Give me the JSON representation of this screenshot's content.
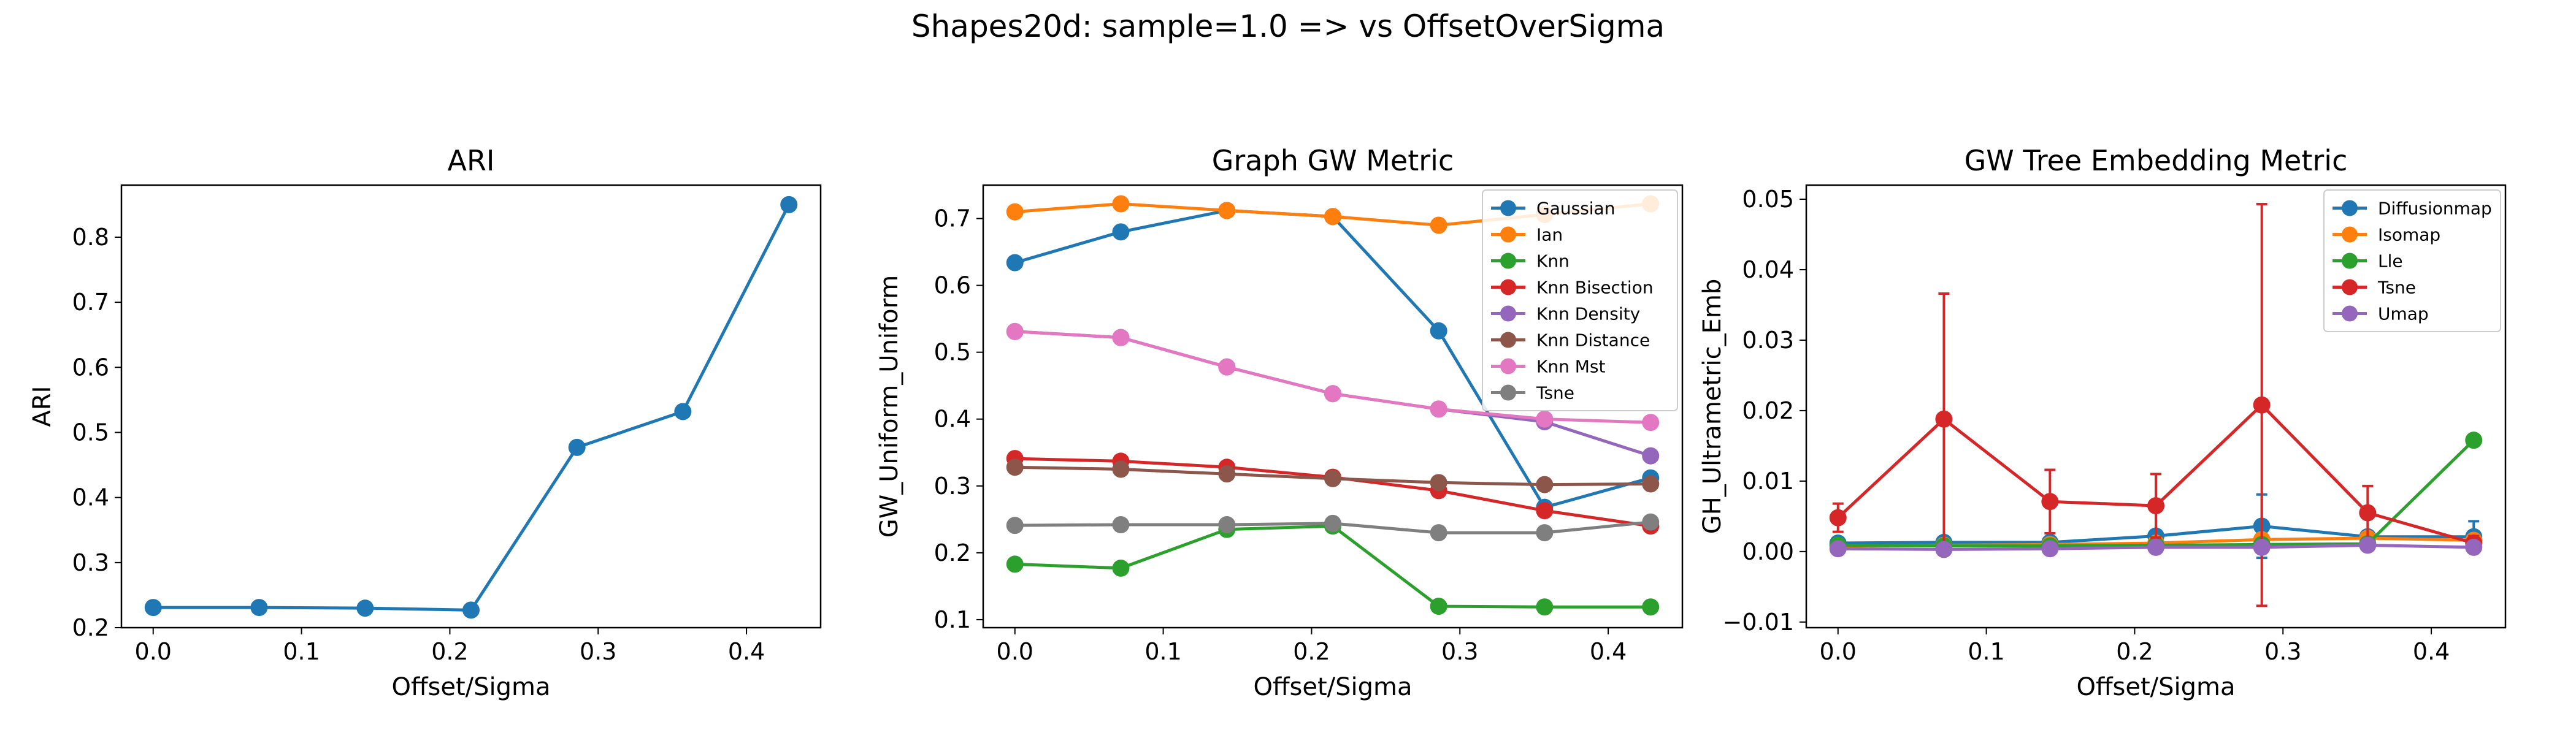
{
  "figure": {
    "suptitle": "Shapes20d: sample=1.0 => vs OffsetOverSigma"
  },
  "chart_data": [
    {
      "type": "line",
      "title": "ARI",
      "xlabel": "Offset/Sigma",
      "ylabel": "ARI",
      "xlim": [
        -0.0214,
        0.45
      ],
      "ylim": [
        0.2,
        0.88
      ],
      "xticks": [
        0.0,
        0.1,
        0.2,
        0.3,
        0.4
      ],
      "xticklabels": [
        "0.0",
        "0.1",
        "0.2",
        "0.3",
        "0.4"
      ],
      "yticks": [
        0.2,
        0.3,
        0.4,
        0.5,
        0.6,
        0.7,
        0.8
      ],
      "yticklabels": [
        "0.2",
        "0.3",
        "0.4",
        "0.5",
        "0.6",
        "0.7",
        "0.8"
      ],
      "grid": false,
      "legend": null,
      "x": [
        0.0,
        0.0714,
        0.1429,
        0.2143,
        0.2857,
        0.3571,
        0.4286
      ],
      "series": [
        {
          "color": "#1f77b4",
          "values": [
            0.231,
            0.231,
            0.23,
            0.227,
            0.477,
            0.532,
            0.85
          ]
        }
      ]
    },
    {
      "type": "line",
      "title": "Graph GW Metric",
      "xlabel": "Offset/Sigma",
      "ylabel": "GW_Uniform_Uniform",
      "xlim": [
        -0.0214,
        0.45
      ],
      "ylim": [
        0.088,
        0.75
      ],
      "xticks": [
        0.0,
        0.1,
        0.2,
        0.3,
        0.4
      ],
      "xticklabels": [
        "0.0",
        "0.1",
        "0.2",
        "0.3",
        "0.4"
      ],
      "yticks": [
        0.1,
        0.2,
        0.3,
        0.4,
        0.5,
        0.6,
        0.7
      ],
      "yticklabels": [
        "0.1",
        "0.2",
        "0.3",
        "0.4",
        "0.5",
        "0.6",
        "0.7"
      ],
      "grid": false,
      "legend": "upper right",
      "x": [
        0.0,
        0.0714,
        0.1429,
        0.2143,
        0.2857,
        0.3571,
        0.4286
      ],
      "series": [
        {
          "name": "Gaussian",
          "color": "#1f77b4",
          "values": [
            0.634,
            0.68,
            0.712,
            0.703,
            0.532,
            0.268,
            0.312
          ]
        },
        {
          "name": "Ian",
          "color": "#ff7f0e",
          "values": [
            0.71,
            0.722,
            0.712,
            0.703,
            0.69,
            0.706,
            0.722
          ]
        },
        {
          "name": "Knn",
          "color": "#2ca02c",
          "values": [
            0.183,
            0.177,
            0.235,
            0.24,
            0.12,
            0.119,
            0.119
          ]
        },
        {
          "name": "Knn Bisection",
          "color": "#d62728",
          "values": [
            0.341,
            0.337,
            0.328,
            0.313,
            0.293,
            0.263,
            0.24
          ]
        },
        {
          "name": "Knn Density",
          "color": "#9467bd",
          "values": [
            0.531,
            0.522,
            0.478,
            0.438,
            0.415,
            0.396,
            0.345
          ]
        },
        {
          "name": "Knn Distance",
          "color": "#8c564b",
          "values": [
            0.328,
            0.325,
            0.318,
            0.311,
            0.305,
            0.302,
            0.303
          ]
        },
        {
          "name": "Knn Mst",
          "color": "#e377c2",
          "values": [
            0.531,
            0.522,
            0.478,
            0.438,
            0.415,
            0.4,
            0.395
          ]
        },
        {
          "name": "Tsne",
          "color": "#7f7f7f",
          "values": [
            0.241,
            0.242,
            0.242,
            0.244,
            0.23,
            0.23,
            0.246
          ]
        }
      ]
    },
    {
      "type": "line",
      "title": "GW Tree Embedding Metric",
      "xlabel": "Offset/Sigma",
      "ylabel": "GH_Ultrametric_Emb",
      "xlim": [
        -0.0214,
        0.45
      ],
      "ylim": [
        -0.0108,
        0.052
      ],
      "xticks": [
        0.0,
        0.1,
        0.2,
        0.3,
        0.4
      ],
      "xticklabels": [
        "0.0",
        "0.1",
        "0.2",
        "0.3",
        "0.4"
      ],
      "yticks": [
        -0.01,
        0.0,
        0.01,
        0.02,
        0.03,
        0.04,
        0.05
      ],
      "yticklabels": [
        "−0.01",
        "0.00",
        "0.01",
        "0.02",
        "0.03",
        "0.04",
        "0.05"
      ],
      "grid": false,
      "legend": "upper right",
      "x": [
        0.0,
        0.0714,
        0.1429,
        0.2143,
        0.2857,
        0.3571,
        0.4286
      ],
      "series": [
        {
          "name": "Diffusionmap",
          "color": "#1f77b4",
          "values": [
            0.0012,
            0.0013,
            0.0013,
            0.0022,
            0.0036,
            0.0021,
            0.0021
          ],
          "errors": [
            0.0003,
            0.0004,
            0.0005,
            0.0008,
            0.0045,
            0.0006,
            0.0022
          ]
        },
        {
          "name": "Isomap",
          "color": "#ff7f0e",
          "values": [
            0.0008,
            0.0009,
            0.001,
            0.0012,
            0.0017,
            0.0019,
            0.0016
          ],
          "errors": [
            0.0002,
            0.0002,
            0.0003,
            0.0004,
            0.0006,
            0.0005,
            0.0005
          ]
        },
        {
          "name": "Lle",
          "color": "#2ca02c",
          "values": [
            0.0009,
            0.0008,
            0.0008,
            0.0009,
            0.001,
            0.0011,
            0.0158
          ],
          "errors": [
            0.0002,
            0.0002,
            0.0002,
            0.0002,
            0.0003,
            0.0003,
            0.0004
          ]
        },
        {
          "name": "Tsne",
          "color": "#d62728",
          "values": [
            0.0048,
            0.0188,
            0.0071,
            0.0065,
            0.0208,
            0.0055,
            0.0012
          ],
          "errors": [
            0.002,
            0.0178,
            0.0045,
            0.0045,
            0.0285,
            0.0038,
            0.001
          ]
        },
        {
          "name": "Umap",
          "color": "#9467bd",
          "values": [
            0.0004,
            0.0003,
            0.0004,
            0.0006,
            0.0006,
            0.0009,
            0.0006
          ],
          "errors": [
            0.0001,
            0.0001,
            0.0001,
            0.0002,
            0.0002,
            0.0002,
            0.0002
          ]
        }
      ]
    }
  ]
}
